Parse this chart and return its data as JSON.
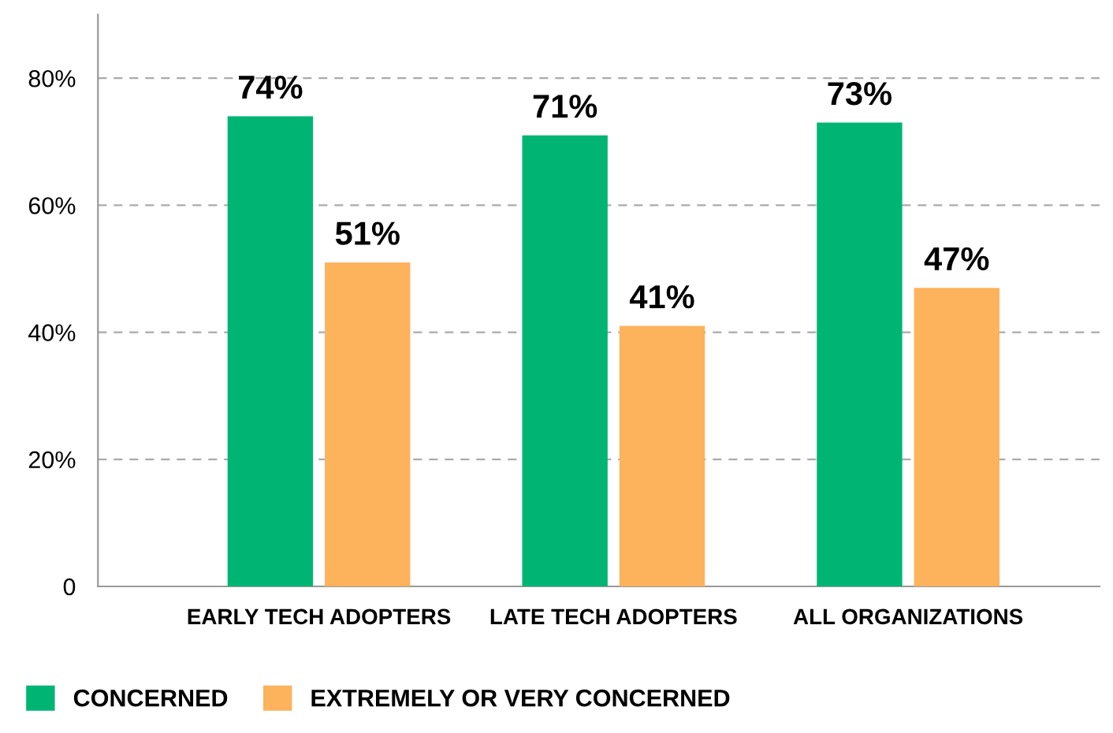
{
  "chart_data": {
    "type": "bar",
    "categories": [
      "EARLY TECH ADOPTERS",
      "LATE TECH ADOPTERS",
      "ALL ORGANIZATIONS"
    ],
    "series": [
      {
        "name": "CONCERNED",
        "color": "#00b574",
        "values": [
          74,
          71,
          73
        ],
        "value_labels": [
          "74%",
          "71%",
          "73%"
        ]
      },
      {
        "name": "EXTREMELY OR VERY CONCERNED",
        "color": "#fdb25c",
        "values": [
          51,
          41,
          47
        ],
        "value_labels": [
          "51%",
          "41%",
          "47%"
        ]
      }
    ],
    "ylim": [
      0,
      90
    ],
    "yticks": [
      0,
      {
        "value": 20,
        "label": "20%"
      },
      {
        "value": 40,
        "label": "40%"
      },
      {
        "value": 60,
        "label": "60%"
      },
      {
        "value": 80,
        "label": "80%"
      }
    ],
    "grid": "y",
    "legend": "bottom left"
  }
}
